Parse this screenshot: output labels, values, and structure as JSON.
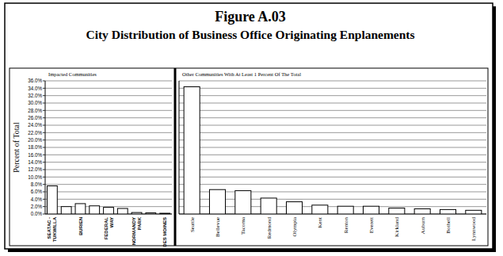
{
  "chart_data": [
    {
      "type": "bar",
      "title": "Figure A.03",
      "subtitle": "City Distribution of Business Office Originating Enplanements",
      "annotation": "Impacted Communities",
      "ylabel": "Percent of Total",
      "categories": [
        "SEATAC - TUKWILLA",
        null,
        "BURIEN",
        null,
        "FEDERAL WAY",
        null,
        "NORMANDY PARK",
        null,
        "DES MOINES"
      ],
      "values": [
        7.6,
        2.0,
        2.8,
        2.2,
        1.8,
        1.5,
        0.4,
        0.3,
        0.2
      ],
      "color": "#ffffff",
      "ylim": [
        0,
        36
      ],
      "yticks": [
        {
          "value": 0,
          "label": "0.0%"
        },
        {
          "value": 2,
          "label": "2.0%"
        },
        {
          "value": 4,
          "label": "4.0%"
        },
        {
          "value": 6,
          "label": "6.0%"
        },
        {
          "value": 8,
          "label": "8.0%"
        },
        {
          "value": 10,
          "label": "10.0%"
        },
        {
          "value": 12,
          "label": "12.0%"
        },
        {
          "value": 14,
          "label": "14.0%"
        },
        {
          "value": 16,
          "label": "16.0%"
        },
        {
          "value": 18,
          "label": "18.0%"
        },
        {
          "value": 20,
          "label": "20.0%"
        },
        {
          "value": 22,
          "label": "22.0%"
        },
        {
          "value": 24,
          "label": "24.0%"
        },
        {
          "value": 26,
          "label": "26.0%"
        },
        {
          "value": 28,
          "label": "28.0%"
        },
        {
          "value": 30,
          "label": "30.0%"
        },
        {
          "value": 32,
          "label": "32.0%"
        },
        {
          "value": 34,
          "label": "34.0%"
        },
        {
          "value": 36,
          "label": "36.0%"
        }
      ],
      "grid": true
    },
    {
      "type": "bar",
      "annotation": "Other Communities With At Least 1 Percent Of The Total",
      "categories": [
        "Seattle",
        "Bellevue",
        "Tacoma",
        "Redmond",
        "Olympia",
        "Kent",
        "Renton",
        "Everett",
        "Kirkland",
        "Auburn",
        "Bothell",
        "Lynnwood"
      ],
      "values": [
        34.4,
        6.6,
        6.3,
        4.3,
        3.3,
        2.4,
        2.1,
        2.1,
        1.6,
        1.4,
        1.2,
        1.0
      ],
      "color": "#ffffff",
      "ylim": [
        0,
        36
      ],
      "yticks": [
        0,
        2,
        4,
        6,
        8,
        10,
        12,
        14,
        16,
        18,
        20,
        22,
        24,
        26,
        28,
        30,
        32,
        34,
        36
      ],
      "grid": true,
      "tick_labels": "x"
    }
  ]
}
